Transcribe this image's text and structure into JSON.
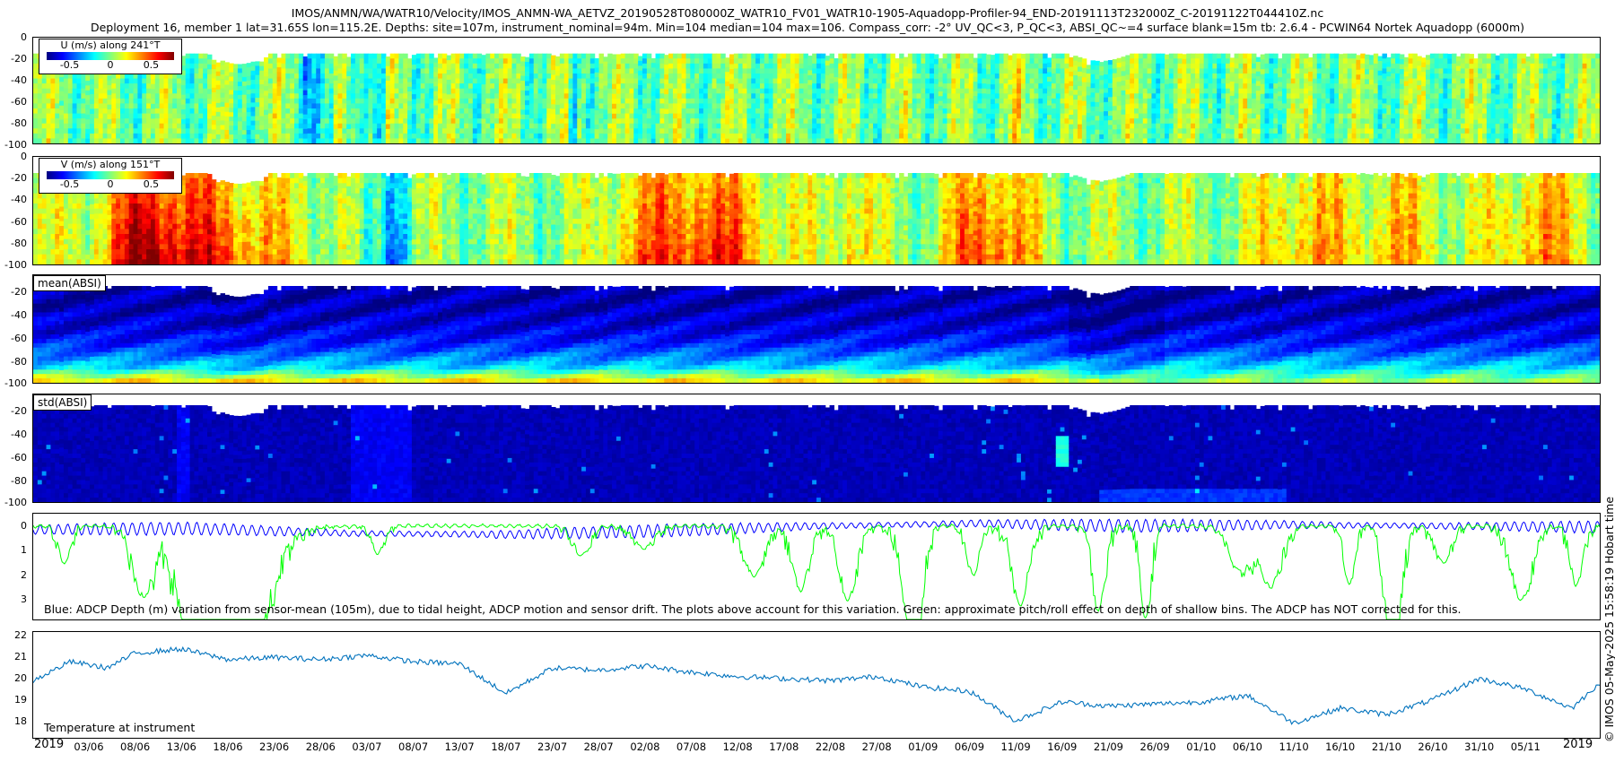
{
  "header": {
    "line1": "IMOS/ANMN/WA/WATR10/Velocity/IMOS_ANMN-WA_AETVZ_20190528T080000Z_WATR10_FV01_WATR10-1905-Aquadopp-Profiler-94_END-20191113T232000Z_C-20191122T044410Z.nc",
    "line2": "Deployment 16, member 1 lat=31.65S lon=115.2E. Depths: site=107m, instrument_nominal=94m. Min=104 median=104 max=106. Compass_corr: -2° UV_QC<3, P_QC<3, ABSI_QC~=4 surface blank=15m tb: 2.6.4 - PCWIN64 Nortek Aquadopp  (6000m)"
  },
  "stamp": "© IMOS 05-May-2025 15:58:19 Hobart time",
  "colors": {
    "jet": [
      "#00007f",
      "#0000ff",
      "#007fff",
      "#00ffff",
      "#7fff7f",
      "#ffff00",
      "#ff7f00",
      "#ff0000",
      "#7f0000"
    ],
    "parula": [
      "#352a87",
      "#0f5cdd",
      "#1481d6",
      "#06a4ca",
      "#2eb7a4",
      "#87bf77",
      "#d1bb59",
      "#fec832",
      "#f9fb0e"
    ],
    "blue_line": "#0000ff",
    "green_line": "#00ff00",
    "temp_line": "#0072bd"
  },
  "panels": {
    "u": {
      "legend_title": "U (m/s) along 241°T",
      "legend_ticks": [
        "-0.5",
        "0",
        "0.5"
      ],
      "yticks": [
        "0",
        "-20",
        "-40",
        "-60",
        "-80",
        "-100"
      ]
    },
    "v": {
      "legend_title": "V (m/s) along 151°T",
      "legend_ticks": [
        "-0.5",
        "0",
        "0.5"
      ],
      "yticks": [
        "0",
        "-20",
        "-40",
        "-60",
        "-80",
        "-100"
      ]
    },
    "mean": {
      "tag": "mean(ABSI)",
      "yticks": [
        "-20",
        "-40",
        "-60",
        "-80",
        "-100"
      ]
    },
    "std": {
      "tag": "std(ABSI)",
      "yticks": [
        "-20",
        "-40",
        "-60",
        "-80",
        "-100"
      ]
    },
    "depth": {
      "yticks": [
        "0",
        "1",
        "2",
        "3"
      ],
      "note": "Blue: ADCP Depth (m) variation from sensor-mean (105m), due to tidal height, ADCP motion and sensor drift. The plots above account for this variation. Green: approximate pitch/roll effect on depth of shallow bins. The ADCP has NOT corrected for this."
    },
    "temp": {
      "yticks": [
        "22",
        "21",
        "20",
        "19",
        "18"
      ],
      "label": "Temperature at instrument"
    }
  },
  "xaxis": {
    "ticks": [
      "03/06",
      "08/06",
      "13/06",
      "18/06",
      "23/06",
      "28/06",
      "03/07",
      "08/07",
      "13/07",
      "18/07",
      "23/07",
      "28/07",
      "02/08",
      "07/08",
      "12/08",
      "17/08",
      "22/08",
      "27/08",
      "01/09",
      "06/09",
      "11/09",
      "16/09",
      "21/09",
      "26/09",
      "01/10",
      "06/10",
      "11/10",
      "16/10",
      "21/10",
      "26/10",
      "31/10",
      "05/11"
    ],
    "year_left": "2019",
    "year_right": "2019"
  },
  "chart_data": [
    {
      "type": "heatmap",
      "name": "U (m/s) along 241°T",
      "x_range": [
        "2019-05-28",
        "2019-11-13"
      ],
      "y_range": [
        -100,
        0
      ],
      "color_range": [
        -0.75,
        0.75
      ],
      "colormap": "jet",
      "surface_blank_m": 15
    },
    {
      "type": "heatmap",
      "name": "V (m/s) along 151°T",
      "x_range": [
        "2019-05-28",
        "2019-11-13"
      ],
      "y_range": [
        -100,
        0
      ],
      "color_range": [
        -0.75,
        0.75
      ],
      "colormap": "jet",
      "surface_blank_m": 15
    },
    {
      "type": "heatmap",
      "name": "mean(ABSI)",
      "x_range": [
        "2019-05-28",
        "2019-11-13"
      ],
      "y_range": [
        -100,
        -10
      ],
      "colormap": "jet"
    },
    {
      "type": "heatmap",
      "name": "std(ABSI)",
      "x_range": [
        "2019-05-28",
        "2019-11-13"
      ],
      "y_range": [
        -100,
        -10
      ],
      "colormap": "jet"
    },
    {
      "type": "line",
      "x_range": [
        "2019-05-28",
        "2019-11-13"
      ],
      "y_range": [
        3.8,
        -0.5
      ],
      "series": [
        {
          "description": "ADCP depth variation (m), tidal",
          "color": "#0000ff",
          "x": [
            "2019-05-28",
            "2019-06-05",
            "2019-06-10",
            "2019-06-15",
            "2019-06-20",
            "2019-07-01",
            "2019-08-01",
            "2019-09-01",
            "2019-10-01",
            "2019-11-01",
            "2019-11-13"
          ],
          "y": [
            0.15,
            0.1,
            0.3,
            0.35,
            0.2,
            0.0,
            -0.1,
            0.0,
            -0.05,
            0.0,
            0.05
          ]
        },
        {
          "description": "approximate pitch/roll effect (m)",
          "color": "#00ff00",
          "x": [
            "2019-05-28",
            "2019-06-01",
            "2019-06-08",
            "2019-06-09",
            "2019-06-12",
            "2019-06-18",
            "2019-06-20",
            "2019-06-22",
            "2019-07-10",
            "2019-08-04",
            "2019-08-05",
            "2019-08-12",
            "2019-08-18",
            "2019-08-19",
            "2019-08-31",
            "2019-09-01",
            "2019-09-12",
            "2019-09-13",
            "2019-09-20",
            "2019-10-10",
            "2019-10-11",
            "2019-10-25",
            "2019-11-02",
            "2019-11-03",
            "2019-11-12"
          ],
          "y": [
            0.1,
            0.0,
            0.4,
            3.8,
            0.2,
            2.5,
            3.8,
            0.3,
            0.05,
            0.6,
            2.2,
            1.0,
            3.5,
            0.4,
            3.8,
            0.2,
            3.8,
            0.3,
            0.1,
            2.5,
            3.8,
            0.2,
            3.5,
            0.4,
            2.5
          ]
        }
      ]
    },
    {
      "type": "line",
      "name": "Temperature at instrument",
      "x_range": [
        "2019-05-28",
        "2019-11-13"
      ],
      "y_range": [
        17.2,
        22.2
      ],
      "x": [
        "2019-05-28",
        "2019-06-01",
        "2019-06-05",
        "2019-06-08",
        "2019-06-13",
        "2019-06-18",
        "2019-06-23",
        "2019-06-28",
        "2019-07-03",
        "2019-07-08",
        "2019-07-13",
        "2019-07-18",
        "2019-07-23",
        "2019-07-28",
        "2019-08-02",
        "2019-08-07",
        "2019-08-12",
        "2019-08-17",
        "2019-08-22",
        "2019-08-27",
        "2019-09-01",
        "2019-09-06",
        "2019-09-11",
        "2019-09-16",
        "2019-09-21",
        "2019-09-26",
        "2019-10-01",
        "2019-10-06",
        "2019-10-11",
        "2019-10-16",
        "2019-10-21",
        "2019-10-26",
        "2019-10-31",
        "2019-11-05",
        "2019-11-10",
        "2019-11-13"
      ],
      "y": [
        19.9,
        20.8,
        20.5,
        21.2,
        21.4,
        20.9,
        21.0,
        20.9,
        21.1,
        20.8,
        20.7,
        19.3,
        20.5,
        20.4,
        20.6,
        20.3,
        20.1,
        20.0,
        19.9,
        20.1,
        19.6,
        19.4,
        18.0,
        18.9,
        18.7,
        18.8,
        18.9,
        19.2,
        17.9,
        18.6,
        18.3,
        19.0,
        20.0,
        19.5,
        18.6,
        19.8
      ]
    }
  ]
}
